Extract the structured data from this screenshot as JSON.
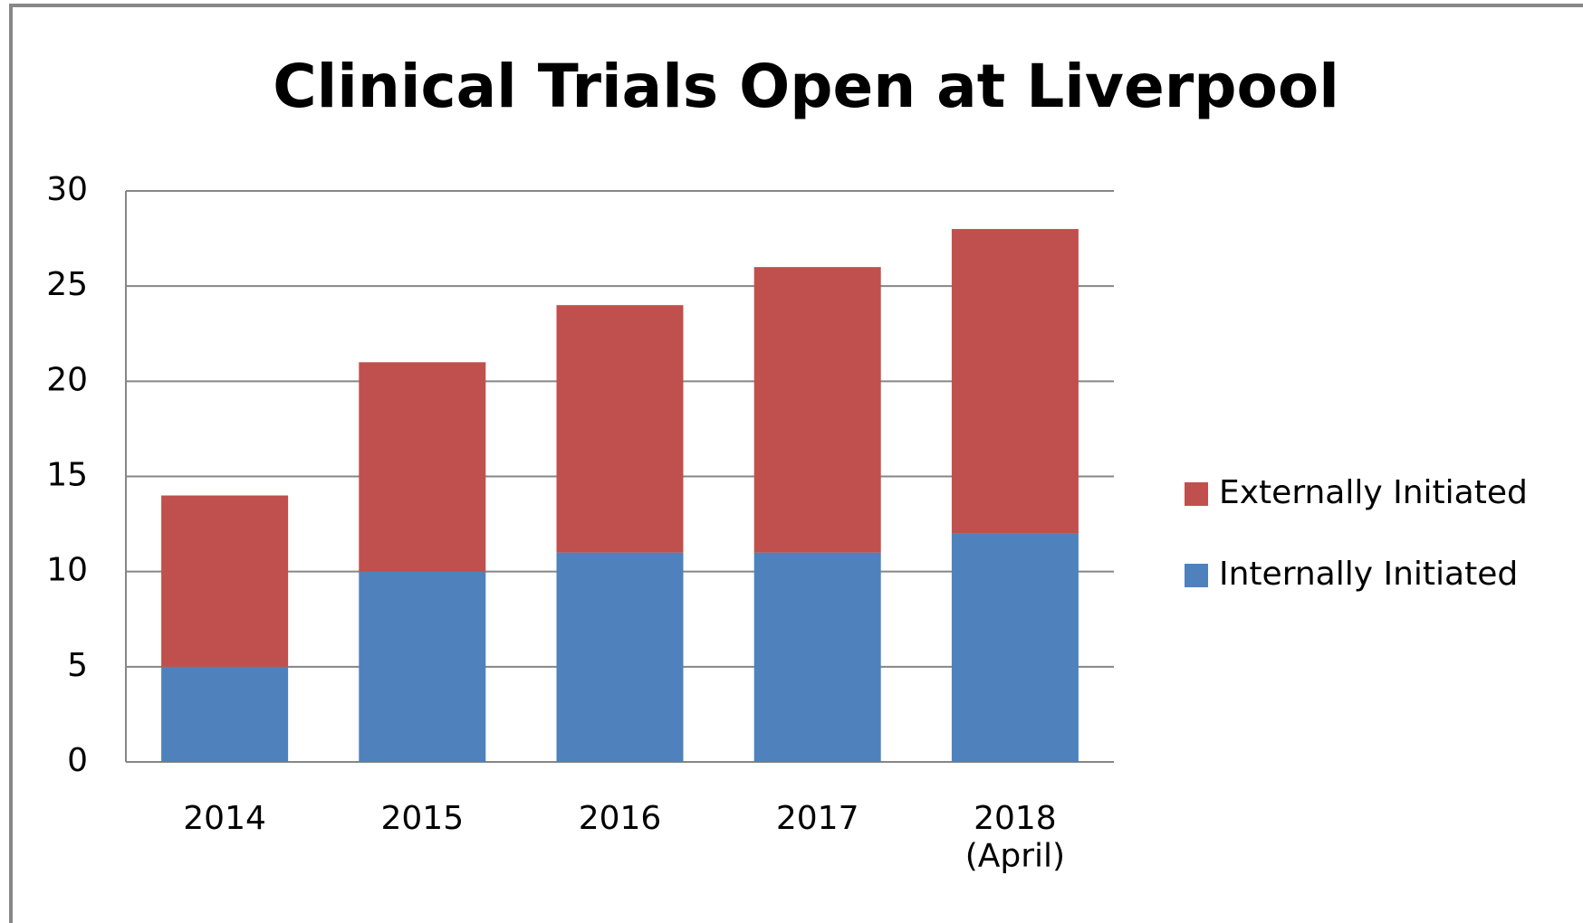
{
  "chart_data": {
    "type": "stacked_bar",
    "title": "Clinical Trials Open at Liverpool",
    "categories": [
      "2014",
      "2015",
      "2016",
      "2017",
      "2018\n(April)"
    ],
    "series": [
      {
        "name": "Internally Initiated",
        "color": "#4f81bd",
        "values": [
          5,
          10,
          11,
          11,
          12
        ]
      },
      {
        "name": "Externally Initiated",
        "color": "#c0504d",
        "values": [
          9,
          11,
          13,
          15,
          16
        ]
      }
    ],
    "ylim": [
      0,
      30
    ],
    "yticks": [
      0,
      5,
      10,
      15,
      20,
      25,
      30
    ],
    "grid": true,
    "legend": "right"
  }
}
